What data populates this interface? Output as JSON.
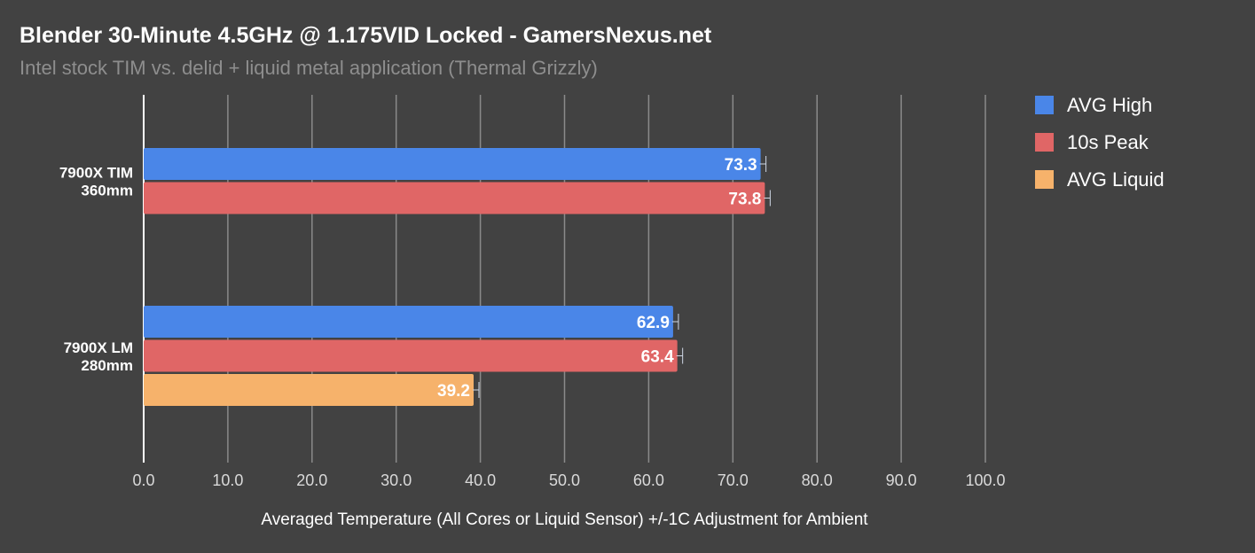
{
  "chart_data": {
    "type": "bar",
    "orientation": "horizontal",
    "title": "Blender 30-Minute 4.5GHz @ 1.175VID Locked - GamersNexus.net",
    "subtitle": "Intel stock TIM vs. delid + liquid metal application (Thermal Grizzly)",
    "xlabel": "Averaged Temperature (All Cores or Liquid Sensor) +/-1C Adjustment for Ambient",
    "ylabel": "",
    "xlim": [
      0,
      100
    ],
    "x_ticks": [
      "0.0",
      "10.0",
      "20.0",
      "30.0",
      "40.0",
      "50.0",
      "60.0",
      "70.0",
      "80.0",
      "90.0",
      "100.0"
    ],
    "grid": true,
    "legend_position": "right",
    "categories": [
      [
        "7900X TIM",
        "360mm"
      ],
      [
        "7900X LM",
        "280mm"
      ]
    ],
    "series": [
      {
        "name": "AVG High",
        "color": "#4a86e8",
        "values": [
          73.3,
          62.9
        ],
        "labels": [
          "73.3",
          "62.9"
        ]
      },
      {
        "name": "10s Peak",
        "color": "#e06666",
        "values": [
          73.8,
          63.4
        ],
        "labels": [
          "73.8",
          "63.4"
        ]
      },
      {
        "name": "AVG Liquid",
        "color": "#f6b26b",
        "values": [
          null,
          39.2
        ],
        "labels": [
          null,
          "39.2"
        ]
      }
    ]
  }
}
